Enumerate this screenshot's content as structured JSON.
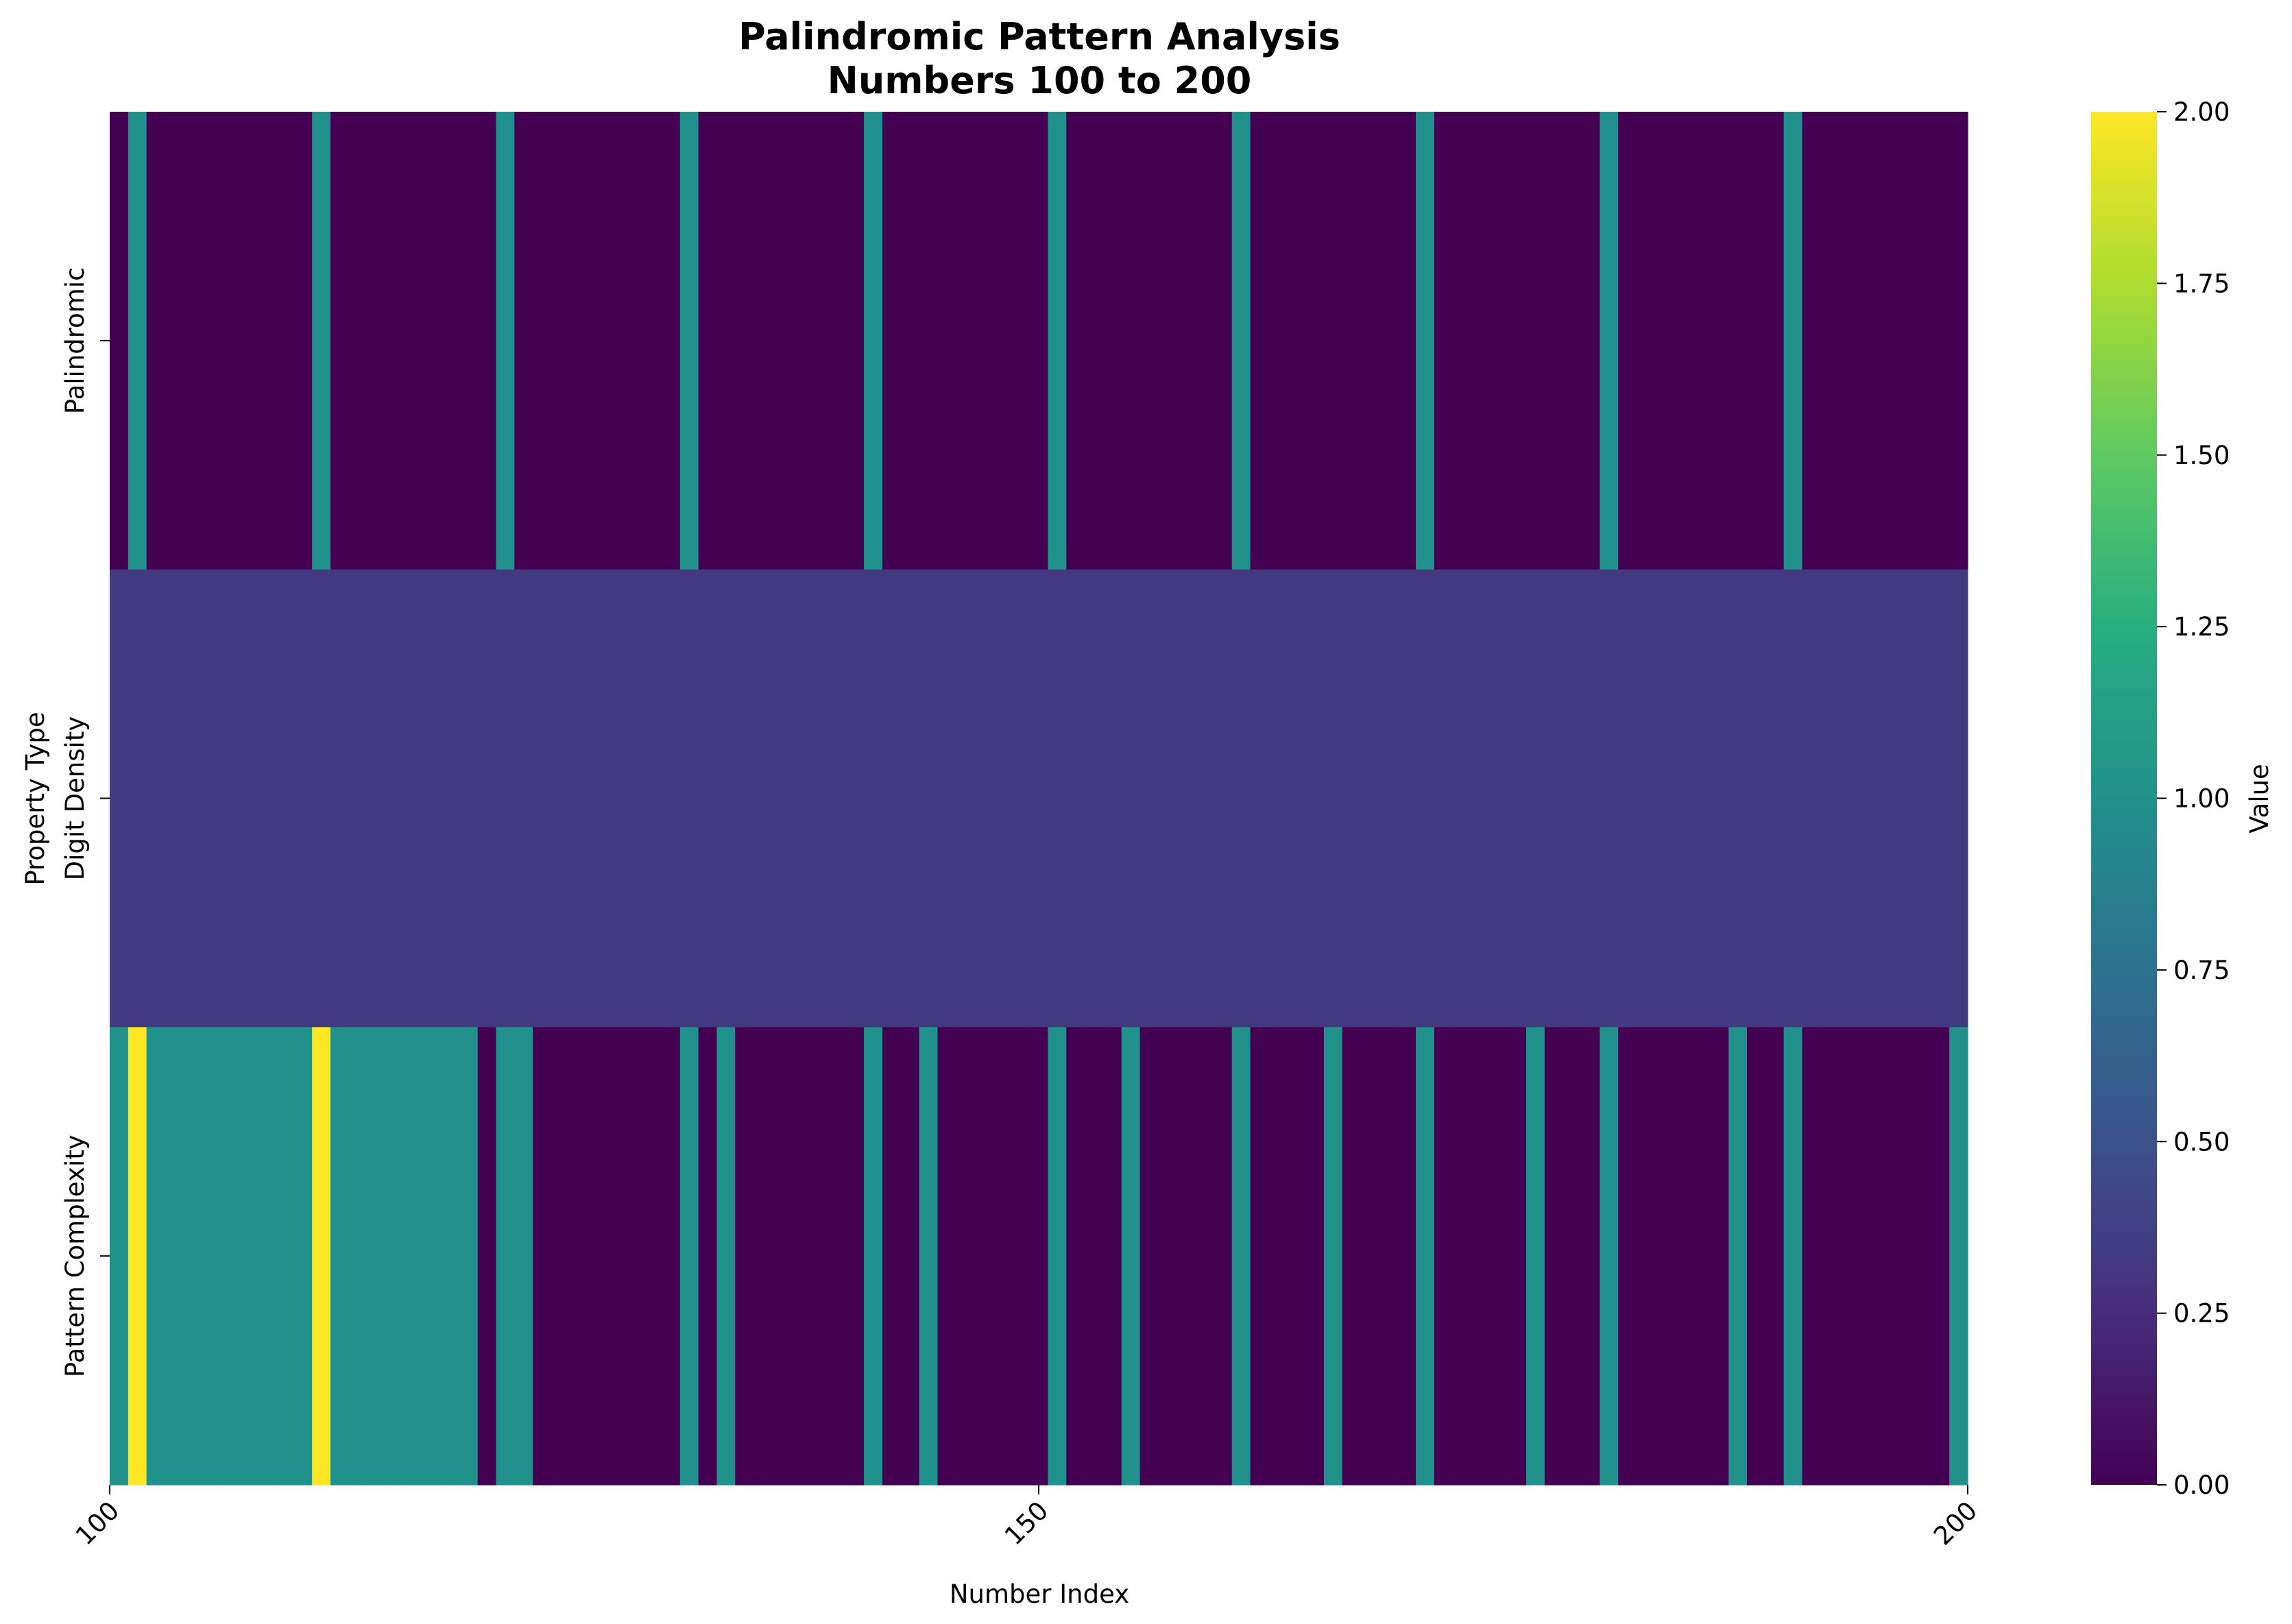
{
  "chart_data": {
    "type": "heatmap",
    "title": [
      "Palindromic Pattern Analysis",
      "Numbers 100 to 200"
    ],
    "xlabel": "Number Index",
    "ylabel": "Property Type",
    "x_start": 100,
    "x_end": 200,
    "x_ticks": [
      100,
      150,
      200
    ],
    "rows": [
      {
        "name": "Palindromic",
        "values": [
          0,
          1,
          0,
          0,
          0,
          0,
          0,
          0,
          0,
          0,
          0,
          1,
          0,
          0,
          0,
          0,
          0,
          0,
          0,
          0,
          0,
          1,
          0,
          0,
          0,
          0,
          0,
          0,
          0,
          0,
          0,
          1,
          0,
          0,
          0,
          0,
          0,
          0,
          0,
          0,
          0,
          1,
          0,
          0,
          0,
          0,
          0,
          0,
          0,
          0,
          0,
          1,
          0,
          0,
          0,
          0,
          0,
          0,
          0,
          0,
          0,
          1,
          0,
          0,
          0,
          0,
          0,
          0,
          0,
          0,
          0,
          1,
          0,
          0,
          0,
          0,
          0,
          0,
          0,
          0,
          0,
          1,
          0,
          0,
          0,
          0,
          0,
          0,
          0,
          0,
          0,
          1,
          0,
          0,
          0,
          0,
          0,
          0,
          0,
          0,
          0
        ]
      },
      {
        "name": "Digit Density",
        "values": [
          0.333,
          0.333,
          0.333,
          0.333,
          0.333,
          0.333,
          0.333,
          0.333,
          0.333,
          0.333,
          0.333,
          0.333,
          0.333,
          0.333,
          0.333,
          0.333,
          0.333,
          0.333,
          0.333,
          0.333,
          0.333,
          0.333,
          0.333,
          0.333,
          0.333,
          0.333,
          0.333,
          0.333,
          0.333,
          0.333,
          0.333,
          0.333,
          0.333,
          0.333,
          0.333,
          0.333,
          0.333,
          0.333,
          0.333,
          0.333,
          0.333,
          0.333,
          0.333,
          0.333,
          0.333,
          0.333,
          0.333,
          0.333,
          0.333,
          0.333,
          0.333,
          0.333,
          0.333,
          0.333,
          0.333,
          0.333,
          0.333,
          0.333,
          0.333,
          0.333,
          0.333,
          0.333,
          0.333,
          0.333,
          0.333,
          0.333,
          0.333,
          0.333,
          0.333,
          0.333,
          0.333,
          0.333,
          0.333,
          0.333,
          0.333,
          0.333,
          0.333,
          0.333,
          0.333,
          0.333,
          0.333,
          0.333,
          0.333,
          0.333,
          0.333,
          0.333,
          0.333,
          0.333,
          0.333,
          0.333,
          0.333,
          0.333,
          0.333,
          0.333,
          0.333,
          0.333,
          0.333,
          0.333,
          0.333,
          0.333,
          0.333
        ]
      },
      {
        "name": "Pattern Complexity",
        "values": [
          1,
          2,
          1,
          1,
          1,
          1,
          1,
          1,
          1,
          1,
          1,
          2,
          1,
          1,
          1,
          1,
          1,
          1,
          1,
          1,
          0,
          1,
          1,
          0,
          0,
          0,
          0,
          0,
          0,
          0,
          0,
          1,
          0,
          1,
          0,
          0,
          0,
          0,
          0,
          0,
          0,
          1,
          0,
          0,
          1,
          0,
          0,
          0,
          0,
          0,
          0,
          1,
          0,
          0,
          0,
          1,
          0,
          0,
          0,
          0,
          0,
          1,
          0,
          0,
          0,
          0,
          1,
          0,
          0,
          0,
          0,
          1,
          0,
          0,
          0,
          0,
          0,
          1,
          0,
          0,
          0,
          1,
          0,
          0,
          0,
          0,
          0,
          0,
          1,
          0,
          0,
          1,
          0,
          0,
          0,
          0,
          0,
          0,
          0,
          0,
          1
        ]
      }
    ],
    "colorbar": {
      "label": "Value",
      "min": 0,
      "max": 2,
      "ticks": [
        "0.00",
        "0.25",
        "0.50",
        "0.75",
        "1.00",
        "1.25",
        "1.50",
        "1.75",
        "2.00"
      ],
      "colormap": "viridis"
    }
  }
}
